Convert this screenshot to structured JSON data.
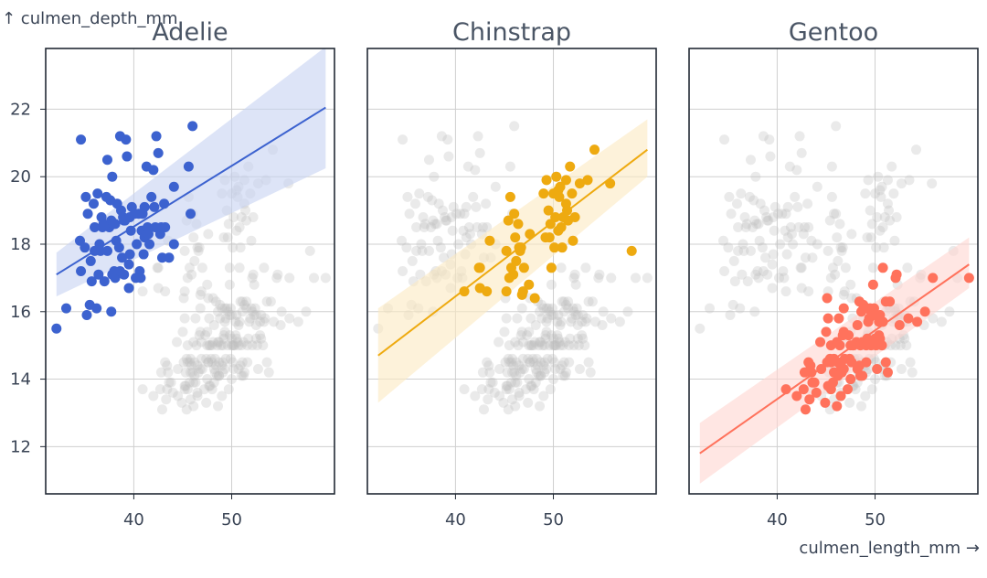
{
  "chart_data": {
    "type": "scatter",
    "title": "",
    "xlabel": "culmen_length_mm →",
    "ylabel": "↑ culmen_depth_mm",
    "xlim": [
      31,
      60.5
    ],
    "ylim": [
      10.6,
      23.8
    ],
    "x_ticks": [
      40,
      50
    ],
    "y_ticks": [
      12,
      14,
      16,
      18,
      20,
      22
    ],
    "grid": true,
    "facets": [
      {
        "name": "Adelie",
        "color": "#3c62cf",
        "band_color": "#c6d2f2",
        "regression": {
          "x": [
            32.1,
            59.6
          ],
          "y": [
            17.1,
            22.05
          ],
          "ci_lower_at_x0": 16.45,
          "ci_upper_at_x0": 17.75,
          "ci_lower_at_x1": 20.25,
          "ci_upper_at_x1": 23.85
        },
        "points": [
          [
            32.1,
            15.5
          ],
          [
            33.1,
            16.1
          ],
          [
            34.5,
            18.1
          ],
          [
            34.6,
            21.1
          ],
          [
            34.6,
            17.2
          ],
          [
            35.0,
            17.9
          ],
          [
            35.1,
            19.4
          ],
          [
            35.2,
            15.9
          ],
          [
            35.3,
            18.9
          ],
          [
            35.5,
            16.2
          ],
          [
            35.6,
            17.5
          ],
          [
            35.7,
            16.9
          ],
          [
            35.9,
            19.2
          ],
          [
            36.0,
            17.8
          ],
          [
            36.0,
            18.5
          ],
          [
            36.2,
            16.1
          ],
          [
            36.3,
            19.5
          ],
          [
            36.4,
            17.1
          ],
          [
            36.5,
            18.0
          ],
          [
            36.6,
            17.8
          ],
          [
            36.7,
            18.8
          ],
          [
            36.8,
            18.5
          ],
          [
            36.9,
            18.6
          ],
          [
            37.0,
            16.9
          ],
          [
            37.2,
            19.4
          ],
          [
            37.3,
            17.8
          ],
          [
            37.3,
            20.5
          ],
          [
            37.5,
            18.5
          ],
          [
            37.6,
            19.3
          ],
          [
            37.7,
            16.0
          ],
          [
            37.7,
            18.7
          ],
          [
            37.8,
            17.1
          ],
          [
            37.8,
            20.0
          ],
          [
            37.9,
            18.6
          ],
          [
            38.0,
            17.2
          ],
          [
            38.1,
            18.6
          ],
          [
            38.1,
            17.0
          ],
          [
            38.2,
            18.1
          ],
          [
            38.3,
            19.2
          ],
          [
            38.5,
            17.9
          ],
          [
            38.6,
            21.2
          ],
          [
            38.6,
            17.2
          ],
          [
            38.7,
            19.0
          ],
          [
            38.8,
            17.6
          ],
          [
            38.9,
            18.8
          ],
          [
            39.0,
            17.1
          ],
          [
            39.0,
            18.7
          ],
          [
            39.1,
            18.7
          ],
          [
            39.2,
            21.1
          ],
          [
            39.3,
            20.6
          ],
          [
            39.5,
            17.4
          ],
          [
            39.5,
            16.7
          ],
          [
            39.6,
            17.7
          ],
          [
            39.6,
            18.8
          ],
          [
            39.7,
            18.4
          ],
          [
            39.8,
            19.1
          ],
          [
            40.1,
            18.9
          ],
          [
            40.2,
            17.0
          ],
          [
            40.3,
            18.0
          ],
          [
            40.5,
            18.9
          ],
          [
            40.6,
            17.2
          ],
          [
            40.7,
            17.0
          ],
          [
            40.8,
            18.4
          ],
          [
            40.9,
            18.9
          ],
          [
            41.0,
            17.7
          ],
          [
            41.1,
            18.2
          ],
          [
            41.1,
            19.1
          ],
          [
            41.3,
            20.3
          ],
          [
            41.4,
            18.5
          ],
          [
            41.5,
            18.3
          ],
          [
            41.6,
            18.0
          ],
          [
            41.8,
            19.4
          ],
          [
            42.0,
            20.2
          ],
          [
            42.1,
            19.1
          ],
          [
            42.2,
            18.5
          ],
          [
            42.3,
            21.2
          ],
          [
            42.5,
            20.7
          ],
          [
            42.7,
            18.3
          ],
          [
            42.8,
            18.5
          ],
          [
            42.9,
            17.6
          ],
          [
            43.1,
            19.2
          ],
          [
            43.2,
            18.5
          ],
          [
            43.6,
            17.6
          ],
          [
            44.1,
            18.0
          ],
          [
            44.1,
            19.7
          ],
          [
            45.6,
            20.3
          ],
          [
            45.8,
            18.9
          ],
          [
            46.0,
            21.5
          ]
        ]
      },
      {
        "name": "Chinstrap",
        "color": "#eeaa10",
        "band_color": "#fbe9c1",
        "regression": {
          "x": [
            32.1,
            59.6
          ],
          "y": [
            14.7,
            20.8
          ],
          "ci_lower_at_x0": 13.3,
          "ci_upper_at_x0": 16.1,
          "ci_lower_at_x1": 20.0,
          "ci_upper_at_x1": 21.7
        },
        "points": [
          [
            40.9,
            16.6
          ],
          [
            42.4,
            17.3
          ],
          [
            42.5,
            16.7
          ],
          [
            42.5,
            17.3
          ],
          [
            43.2,
            16.6
          ],
          [
            43.5,
            18.1
          ],
          [
            45.2,
            16.6
          ],
          [
            45.2,
            17.8
          ],
          [
            45.4,
            18.7
          ],
          [
            45.5,
            17.0
          ],
          [
            45.6,
            19.4
          ],
          [
            45.7,
            17.3
          ],
          [
            45.9,
            17.1
          ],
          [
            46.0,
            18.9
          ],
          [
            46.1,
            18.2
          ],
          [
            46.2,
            17.5
          ],
          [
            46.4,
            18.6
          ],
          [
            46.5,
            17.9
          ],
          [
            46.6,
            17.8
          ],
          [
            46.7,
            17.9
          ],
          [
            46.8,
            16.5
          ],
          [
            46.9,
            16.6
          ],
          [
            47.0,
            17.3
          ],
          [
            47.5,
            16.8
          ],
          [
            47.6,
            18.3
          ],
          [
            48.1,
            16.4
          ],
          [
            49.0,
            19.5
          ],
          [
            49.2,
            18.2
          ],
          [
            49.3,
            19.9
          ],
          [
            49.5,
            19.0
          ],
          [
            49.6,
            18.2
          ],
          [
            49.7,
            18.6
          ],
          [
            49.8,
            17.3
          ],
          [
            50.0,
            19.5
          ],
          [
            50.1,
            17.9
          ],
          [
            50.2,
            18.8
          ],
          [
            50.3,
            20.0
          ],
          [
            50.5,
            19.6
          ],
          [
            50.5,
            18.4
          ],
          [
            50.6,
            19.4
          ],
          [
            50.7,
            19.7
          ],
          [
            50.8,
            18.5
          ],
          [
            50.9,
            17.9
          ],
          [
            51.0,
            18.8
          ],
          [
            51.3,
            19.2
          ],
          [
            51.3,
            19.9
          ],
          [
            51.4,
            19.0
          ],
          [
            51.5,
            18.7
          ],
          [
            51.7,
            20.3
          ],
          [
            51.9,
            19.5
          ],
          [
            52.0,
            18.1
          ],
          [
            52.2,
            18.8
          ],
          [
            52.7,
            19.8
          ],
          [
            53.5,
            19.9
          ],
          [
            54.2,
            20.8
          ],
          [
            55.8,
            19.8
          ],
          [
            58.0,
            17.8
          ]
        ]
      },
      {
        "name": "Gentoo",
        "color": "#ff725c",
        "band_color": "#ffd6d0",
        "regression": {
          "x": [
            32.1,
            59.6
          ],
          "y": [
            11.8,
            17.4
          ],
          "ci_lower_at_x0": 10.9,
          "ci_upper_at_x0": 12.7,
          "ci_lower_at_x1": 16.7,
          "ci_upper_at_x1": 18.2
        },
        "points": [
          [
            40.9,
            13.7
          ],
          [
            42.0,
            13.5
          ],
          [
            42.7,
            13.7
          ],
          [
            42.8,
            14.2
          ],
          [
            42.9,
            13.1
          ],
          [
            43.2,
            14.5
          ],
          [
            43.3,
            13.4
          ],
          [
            43.4,
            14.4
          ],
          [
            43.5,
            14.2
          ],
          [
            43.6,
            13.9
          ],
          [
            43.8,
            13.9
          ],
          [
            44.0,
            13.6
          ],
          [
            44.4,
            15.1
          ],
          [
            44.5,
            14.3
          ],
          [
            44.9,
            13.3
          ],
          [
            45.0,
            15.4
          ],
          [
            45.1,
            14.5
          ],
          [
            45.1,
            16.4
          ],
          [
            45.2,
            13.8
          ],
          [
            45.2,
            15.8
          ],
          [
            45.3,
            13.8
          ],
          [
            45.4,
            14.6
          ],
          [
            45.5,
            13.7
          ],
          [
            45.5,
            14.5
          ],
          [
            45.5,
            15.0
          ],
          [
            45.7,
            13.9
          ],
          [
            45.8,
            14.2
          ],
          [
            45.8,
            14.6
          ],
          [
            46.1,
            13.2
          ],
          [
            46.1,
            15.1
          ],
          [
            46.2,
            14.1
          ],
          [
            46.2,
            14.5
          ],
          [
            46.3,
            15.8
          ],
          [
            46.4,
            15.0
          ],
          [
            46.5,
            13.5
          ],
          [
            46.5,
            14.4
          ],
          [
            46.6,
            14.2
          ],
          [
            46.7,
            15.3
          ],
          [
            46.8,
            14.3
          ],
          [
            46.8,
            15.4
          ],
          [
            46.8,
            16.1
          ],
          [
            46.9,
            14.6
          ],
          [
            47.2,
            13.7
          ],
          [
            47.3,
            15.3
          ],
          [
            47.4,
            14.6
          ],
          [
            47.5,
            14.0
          ],
          [
            47.5,
            15.0
          ],
          [
            47.6,
            14.5
          ],
          [
            47.7,
            15.0
          ],
          [
            47.8,
            15.0
          ],
          [
            48.1,
            15.1
          ],
          [
            48.2,
            14.3
          ],
          [
            48.2,
            15.6
          ],
          [
            48.4,
            14.4
          ],
          [
            48.4,
            16.3
          ],
          [
            48.5,
            14.1
          ],
          [
            48.5,
            15.0
          ],
          [
            48.6,
            16.0
          ],
          [
            48.7,
            14.1
          ],
          [
            48.7,
            15.1
          ],
          [
            48.8,
            16.2
          ],
          [
            49.0,
            16.1
          ],
          [
            49.1,
            14.5
          ],
          [
            49.1,
            15.0
          ],
          [
            49.2,
            15.2
          ],
          [
            49.3,
            15.7
          ],
          [
            49.4,
            15.8
          ],
          [
            49.5,
            16.1
          ],
          [
            49.6,
            15.0
          ],
          [
            49.6,
            16.0
          ],
          [
            49.8,
            15.9
          ],
          [
            49.8,
            16.8
          ],
          [
            49.9,
            16.1
          ],
          [
            50.0,
            15.2
          ],
          [
            50.0,
            15.9
          ],
          [
            50.1,
            15.0
          ],
          [
            50.2,
            14.3
          ],
          [
            50.4,
            15.3
          ],
          [
            50.4,
            15.7
          ],
          [
            50.5,
            15.2
          ],
          [
            50.5,
            15.9
          ],
          [
            50.7,
            15.0
          ],
          [
            50.8,
            15.7
          ],
          [
            50.8,
            17.3
          ],
          [
            51.1,
            14.5
          ],
          [
            51.1,
            16.3
          ],
          [
            51.3,
            14.2
          ],
          [
            51.5,
            16.3
          ],
          [
            52.1,
            17.0
          ],
          [
            52.2,
            17.1
          ],
          [
            52.5,
            15.6
          ],
          [
            53.4,
            15.8
          ],
          [
            54.3,
            15.7
          ],
          [
            55.1,
            16.0
          ],
          [
            55.9,
            17.0
          ],
          [
            59.6,
            17.0
          ]
        ]
      }
    ]
  }
}
